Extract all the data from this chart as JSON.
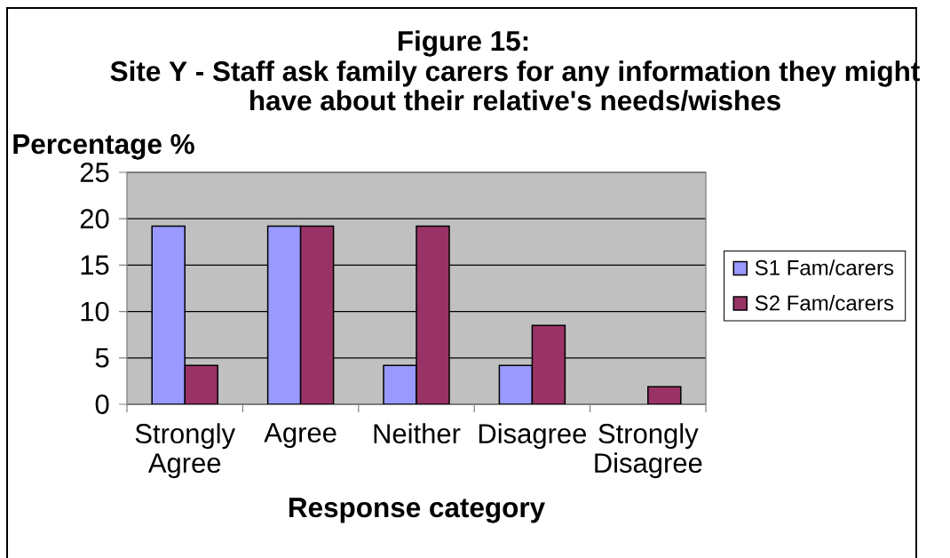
{
  "chart_data": {
    "type": "bar",
    "title": "Figure 15:",
    "subtitle": "Site Y - Staff ask family carers for any information they might have about their relative's needs/wishes",
    "xlabel": "Response category",
    "ylabel": "Percentage %",
    "categories": [
      "Strongly Agree",
      "Agree",
      "Neither",
      "Disagree",
      "Strongly Disagree"
    ],
    "series": [
      {
        "name": "S1 Fam/carers",
        "color": "#9999ff",
        "values": [
          19.2,
          19.2,
          4.2,
          4.2,
          null
        ]
      },
      {
        "name": "S2 Fam/carers",
        "color": "#993366",
        "values": [
          4.2,
          19.2,
          19.2,
          8.5,
          1.9
        ]
      }
    ],
    "ylim": [
      0,
      25
    ],
    "yticks": [
      0,
      5,
      10,
      15,
      20,
      25
    ],
    "grid": "y",
    "legend": "right"
  }
}
